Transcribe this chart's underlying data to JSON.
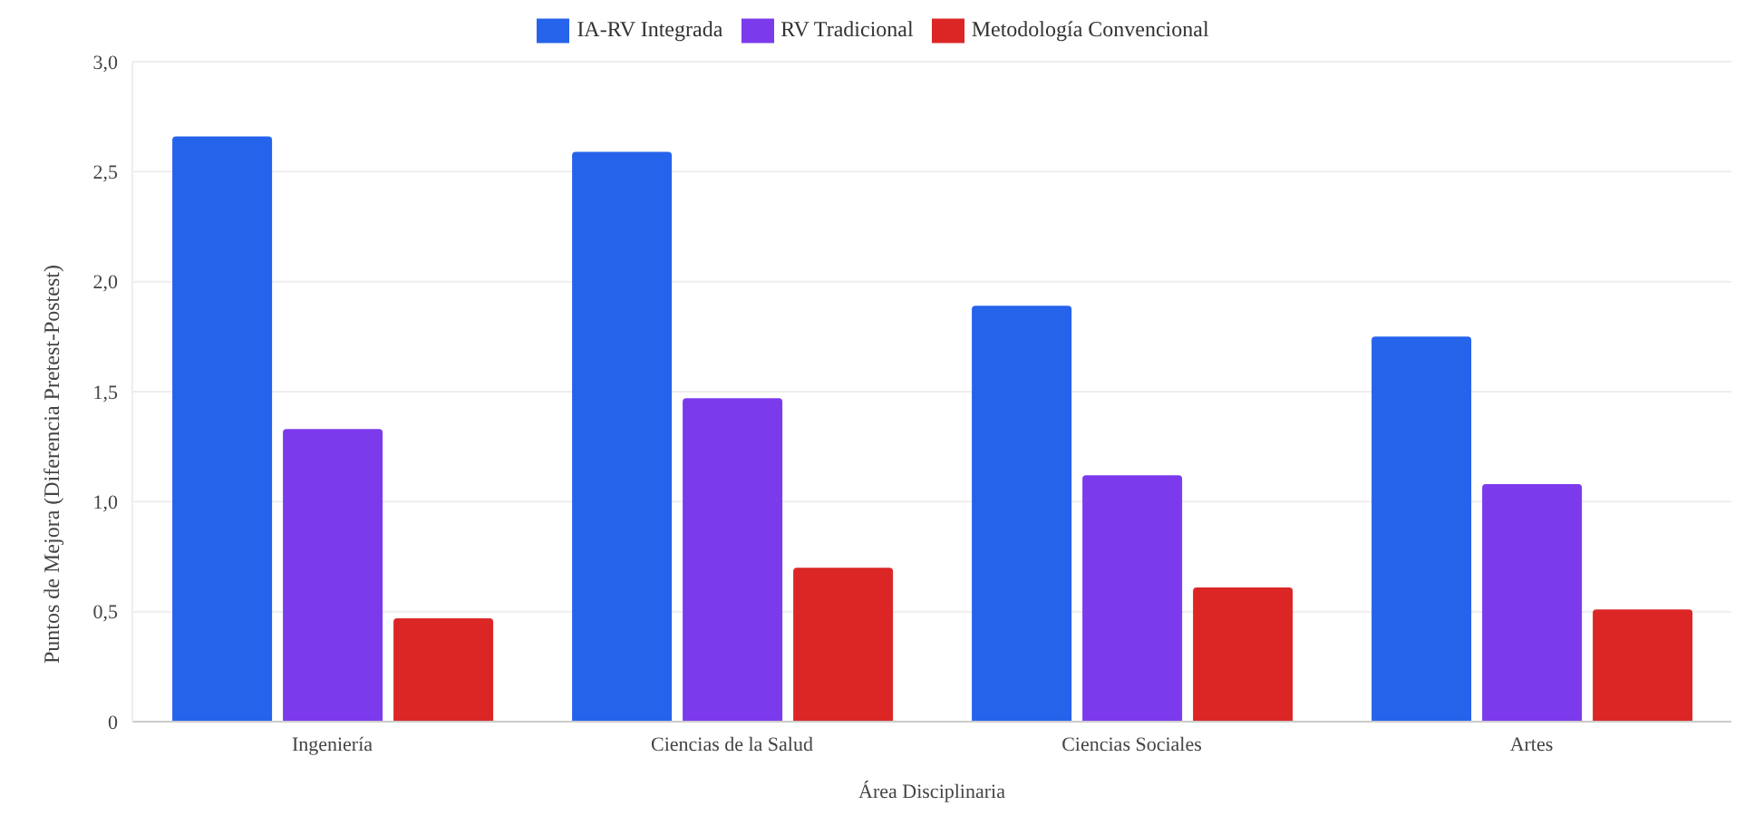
{
  "chart_data": {
    "type": "bar",
    "xlabel": "Área Disciplinaria",
    "ylabel": "Puntos de Mejora (Diferencia Pretest-Postest)",
    "categories": [
      "Ingeniería",
      "Ciencias de la Salud",
      "Ciencias Sociales",
      "Artes"
    ],
    "series": [
      {
        "name": "IA-RV Integrada",
        "color": "#2563eb",
        "values": [
          2.66,
          2.59,
          1.89,
          1.75
        ]
      },
      {
        "name": "RV Tradicional",
        "color": "#7c3aed",
        "values": [
          1.33,
          1.47,
          1.12,
          1.08
        ]
      },
      {
        "name": "Metodología Convencional",
        "color": "#dc2626",
        "values": [
          0.47,
          0.7,
          0.61,
          0.51
        ]
      }
    ],
    "ylim": [
      0,
      3
    ],
    "yticks": [
      {
        "value": 0,
        "label": "0"
      },
      {
        "value": 0.5,
        "label": "0,5"
      },
      {
        "value": 1,
        "label": "1,0"
      },
      {
        "value": 1.5,
        "label": "1,5"
      },
      {
        "value": 2,
        "label": "2,0"
      },
      {
        "value": 2.5,
        "label": "2,5"
      },
      {
        "value": 3,
        "label": "3,0"
      }
    ],
    "grid": "y",
    "legend": "top"
  }
}
